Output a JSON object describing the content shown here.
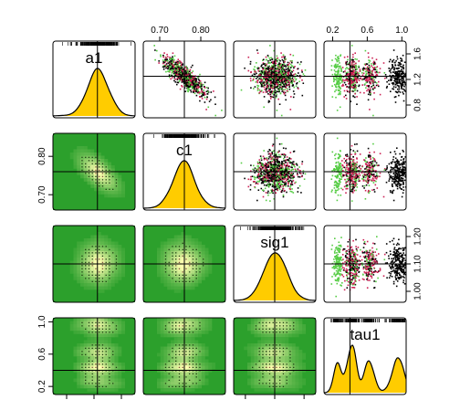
{
  "chart_data": {
    "type": "scatter-matrix",
    "variables": [
      {
        "name": "a1",
        "label": "a1",
        "range": [
          0.6,
          1.8
        ],
        "mode": 1.25,
        "sd": 0.15
      },
      {
        "name": "c1",
        "label": "c1",
        "range": [
          0.66,
          0.86
        ],
        "mode": 0.76,
        "sd": 0.025
      },
      {
        "name": "sig1",
        "label": "sig1",
        "range": [
          0.96,
          1.24
        ],
        "mode": 1.1,
        "sd": 0.035
      },
      {
        "name": "tau1",
        "label": "tau1",
        "range": [
          0.1,
          1.05
        ],
        "mode": 0.4,
        "sd": 0.2
      }
    ],
    "ticks": {
      "a1": {
        "values": [
          0.8,
          1.2,
          1.6
        ],
        "labels": [
          "0.8",
          "1.2",
          "1.6"
        ]
      },
      "c1": {
        "values": [
          0.7,
          0.8
        ],
        "labels": [
          "0.70",
          "0.80"
        ]
      },
      "sig1": {
        "values": [
          1.0,
          1.1,
          1.2
        ],
        "labels": [
          "1.00",
          "1.10",
          "1.20"
        ]
      },
      "tau1": {
        "values": [
          0.2,
          0.6,
          1.0
        ],
        "labels": [
          "0.2",
          "0.6",
          "1.0"
        ]
      }
    },
    "upper_panels": "scatter",
    "lower_panels": "density-contour",
    "diagonal_panels": "density",
    "reference_point": {
      "a1": 1.25,
      "c1": 0.76,
      "sig1": 1.1,
      "tau1": 0.4
    },
    "correlation_a1_c1": -0.85,
    "tau1_clusters": [
      {
        "center": 0.25,
        "weight": 0.16,
        "spread": 0.035
      },
      {
        "center": 0.42,
        "weight": 0.34,
        "spread": 0.045
      },
      {
        "center": 0.62,
        "weight": 0.2,
        "spread": 0.05
      },
      {
        "center": 0.95,
        "weight": 0.3,
        "spread": 0.06
      }
    ],
    "colors": {
      "density_fill": "#ffcc00",
      "contour_bg": "#2ca02c",
      "contour_hot": "#ffffb0",
      "point_green": "#55cc44",
      "point_red": "#cc2255",
      "point_black": "#000000"
    }
  }
}
